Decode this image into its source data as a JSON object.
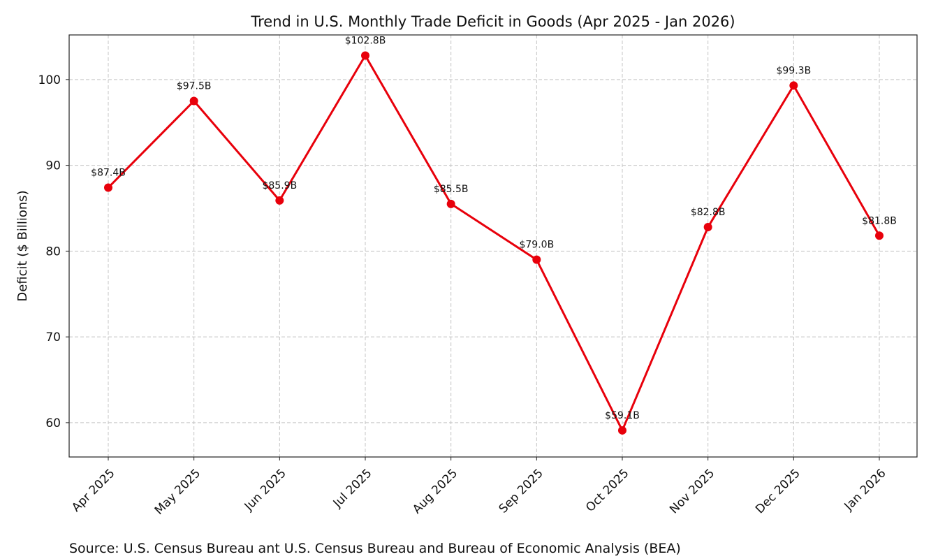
{
  "chart_data": {
    "type": "line",
    "title": "Trend in U.S. Monthly Trade Deficit in Goods (Apr 2025 - Jan 2026)",
    "xlabel": "",
    "ylabel": "Deficit ($ Billions)",
    "categories": [
      "Apr 2025",
      "May 2025",
      "Jun 2025",
      "Jul 2025",
      "Aug 2025",
      "Sep 2025",
      "Oct 2025",
      "Nov 2025",
      "Dec 2025",
      "Jan 2026"
    ],
    "series": [
      {
        "values": [
          87.4,
          97.5,
          85.9,
          102.8,
          85.5,
          79.0,
          59.1,
          82.8,
          99.3,
          81.8
        ],
        "labels": [
          "$87.4B",
          "$97.5B",
          "$85.9B",
          "$102.8B",
          "$85.5B",
          "$79.0B",
          "$59.1B",
          "$82.8B",
          "$99.3B",
          "$81.8B"
        ],
        "color": "#e8000b"
      }
    ],
    "yticks": [
      60,
      70,
      80,
      90,
      100
    ],
    "ylim": [
      56,
      105.2
    ],
    "grid": true,
    "legend": "none",
    "source": "Source: U.S. Census Bureau ant U.S. Census Bureau and Bureau of Economic Analysis (BEA)"
  }
}
